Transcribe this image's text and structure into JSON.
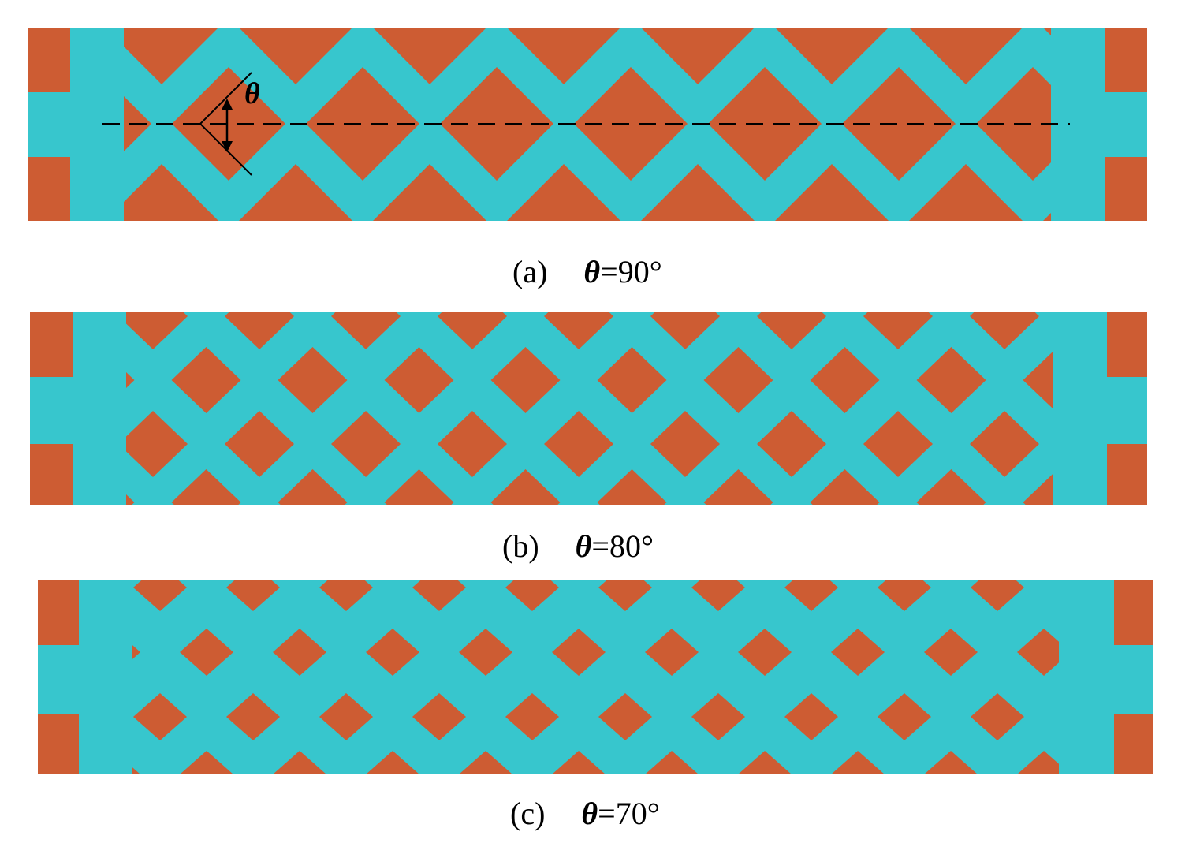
{
  "colors": {
    "orange": "#cd5c33",
    "cyan": "#37c6cd",
    "line": "#000000"
  },
  "annotation": {
    "symbol": "θ"
  },
  "panels": [
    {
      "id": "a",
      "label": "(a)",
      "symbol": "θ",
      "value": "=90°",
      "angle_deg": 90
    },
    {
      "id": "b",
      "label": "(b)",
      "symbol": "θ",
      "value": "=80°",
      "angle_deg": 80
    },
    {
      "id": "c",
      "label": "(c)",
      "symbol": "θ",
      "value": "=70°",
      "angle_deg": 70
    }
  ]
}
